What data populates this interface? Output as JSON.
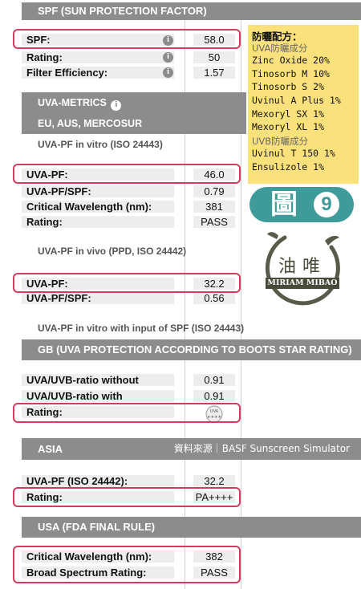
{
  "spf_section": {
    "header": "SPF (SUN PROTECTION FACTOR)",
    "rows": [
      {
        "label": "SPF:",
        "value": "58.0"
      },
      {
        "label": "Rating:",
        "value": "50"
      },
      {
        "label": "Filter Efficiency:",
        "value": "1.57"
      }
    ]
  },
  "uva_metrics": {
    "header": "UVA-METRICS",
    "region": "EU, AUS, MERCOSUR",
    "vitro_title": "UVA-PF in vitro (ISO 24443)",
    "vitro_rows": [
      {
        "label": "UVA-PF:",
        "value": "46.0"
      },
      {
        "label": "UVA-PF/SPF:",
        "value": "0.79"
      },
      {
        "label": "Critical Wavelength (nm):",
        "value": "381"
      },
      {
        "label": "Rating:",
        "value": "PASS"
      }
    ],
    "vivo_title": "UVA-PF in vivo (PPD, ISO 24442)",
    "vivo_rows": [
      {
        "label": "UVA-PF:",
        "value": "32.2"
      },
      {
        "label": "UVA-PF/SPF:",
        "value": "0.56"
      }
    ],
    "vitro_spf_note": "UVA-PF in vitro with input of SPF (ISO 24443)"
  },
  "gb_section": {
    "header": "GB (UVA PROTECTION ACCORDING TO BOOTS STAR RATING)",
    "rows": [
      {
        "label": "UVA/UVB-ratio without",
        "value": "0.91"
      },
      {
        "label": "UVA/UVB-ratio with",
        "value": "0.91"
      },
      {
        "label": "Rating:",
        "value": ""
      }
    ],
    "badge_text": "UVA"
  },
  "asia_section": {
    "header": "ASIA",
    "source": "資料來源｜BASF Sunscreen Simulator",
    "rows": [
      {
        "label": "UVA-PF (ISO 24442):",
        "value": "32.2"
      },
      {
        "label": "Rating:",
        "value": "PA++++"
      }
    ]
  },
  "usa_section": {
    "header": "USA (FDA FINAL RULE)",
    "rows": [
      {
        "label": "Critical Wavelength (nm):",
        "value": "382"
      },
      {
        "label": "Broad Spectrum Rating:",
        "value": "PASS"
      }
    ]
  },
  "formula_note": {
    "title": "防曬配方：",
    "uva_heading": "UVA防曬成分",
    "uva_items": [
      "Zinc Oxide 20%",
      "Tinosorb M 10%",
      "Tinosorb S 2%",
      "Uvinul A Plus 1%",
      "Mexoryl SX 1%",
      "Mexoryl XL 1%"
    ],
    "uvb_heading": "UVB防曬成分",
    "uvb_items": [
      "Uvinul T 150 1%",
      "Ensulizole 1%"
    ]
  },
  "figure_badge": {
    "label": "圖",
    "number": "9"
  },
  "logo": {
    "text": "MIRIAM MIBAO",
    "glyphs": "油唯"
  },
  "colors": {
    "header_gray": "#8c8c8c",
    "highlight_red": "#d23c5e",
    "note_yellow": "#fbe17c",
    "badge_teal": "#3f9a9a"
  },
  "icons": {
    "info": "info-icon"
  }
}
